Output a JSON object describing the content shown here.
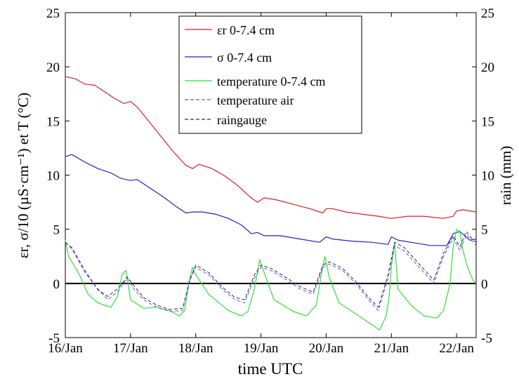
{
  "chart_data": {
    "type": "line",
    "xlabel": "time UTC",
    "ylabel_left": "εr, σ/10 (µS·cm⁻¹) et T (°C)",
    "ylabel_right": "rain (mm)",
    "x_ticks": [
      "16/Jan",
      "17/Jan",
      "18/Jan",
      "19/Jan",
      "20/Jan",
      "21/Jan",
      "22/Jan"
    ],
    "x_range_days": [
      16,
      22.3
    ],
    "ylim_left": [
      -5,
      25
    ],
    "ylim_right": [
      -5,
      25
    ],
    "y_ticks": [
      -5,
      0,
      5,
      10,
      15,
      20,
      25
    ],
    "zero_line": 0,
    "legend_position": "top-center",
    "series": [
      {
        "key": "er",
        "name": "εr 0-7.4 cm",
        "color": "#d62020",
        "style": "solid",
        "points": [
          [
            16.0,
            19.1
          ],
          [
            16.15,
            18.9
          ],
          [
            16.3,
            18.4
          ],
          [
            16.45,
            18.3
          ],
          [
            16.6,
            17.7
          ],
          [
            16.75,
            17.1
          ],
          [
            16.9,
            16.6
          ],
          [
            17.0,
            16.8
          ],
          [
            17.1,
            16.3
          ],
          [
            17.25,
            15.2
          ],
          [
            17.45,
            13.7
          ],
          [
            17.65,
            12.2
          ],
          [
            17.85,
            10.9
          ],
          [
            17.95,
            10.6
          ],
          [
            18.05,
            11.0
          ],
          [
            18.25,
            10.6
          ],
          [
            18.45,
            9.9
          ],
          [
            18.65,
            9.0
          ],
          [
            18.85,
            7.9
          ],
          [
            18.95,
            7.5
          ],
          [
            19.05,
            7.9
          ],
          [
            19.25,
            7.7
          ],
          [
            19.5,
            7.3
          ],
          [
            19.75,
            6.9
          ],
          [
            19.95,
            6.5
          ],
          [
            20.0,
            6.9
          ],
          [
            20.1,
            6.9
          ],
          [
            20.3,
            6.6
          ],
          [
            20.55,
            6.4
          ],
          [
            20.8,
            6.2
          ],
          [
            21.0,
            6.0
          ],
          [
            21.25,
            6.2
          ],
          [
            21.5,
            6.2
          ],
          [
            21.8,
            6.0
          ],
          [
            21.95,
            6.2
          ],
          [
            22.0,
            6.7
          ],
          [
            22.1,
            6.8
          ],
          [
            22.3,
            6.6
          ]
        ]
      },
      {
        "key": "sigma",
        "name": "σ 0-7.4 cm",
        "color": "#2020d0",
        "style": "solid",
        "points": [
          [
            16.0,
            11.7
          ],
          [
            16.1,
            11.9
          ],
          [
            16.3,
            11.2
          ],
          [
            16.5,
            10.6
          ],
          [
            16.7,
            10.2
          ],
          [
            16.85,
            9.7
          ],
          [
            17.0,
            9.5
          ],
          [
            17.1,
            9.6
          ],
          [
            17.3,
            8.8
          ],
          [
            17.5,
            8.0
          ],
          [
            17.7,
            7.1
          ],
          [
            17.85,
            6.5
          ],
          [
            17.95,
            6.6
          ],
          [
            18.1,
            6.6
          ],
          [
            18.3,
            6.4
          ],
          [
            18.5,
            6.0
          ],
          [
            18.7,
            5.4
          ],
          [
            18.85,
            4.6
          ],
          [
            18.95,
            4.7
          ],
          [
            19.05,
            4.4
          ],
          [
            19.3,
            4.4
          ],
          [
            19.6,
            4.1
          ],
          [
            19.9,
            3.8
          ],
          [
            20.0,
            4.3
          ],
          [
            20.1,
            4.1
          ],
          [
            20.4,
            3.9
          ],
          [
            20.7,
            3.8
          ],
          [
            20.95,
            3.6
          ],
          [
            21.0,
            4.3
          ],
          [
            21.1,
            4.0
          ],
          [
            21.3,
            3.8
          ],
          [
            21.6,
            3.5
          ],
          [
            21.85,
            3.5
          ],
          [
            21.95,
            4.6
          ],
          [
            22.05,
            4.8
          ],
          [
            22.2,
            4.0
          ],
          [
            22.3,
            4.1
          ]
        ]
      },
      {
        "key": "temp_soil",
        "name": "temperature 0-7.4 cm",
        "color": "#33dd33",
        "style": "solid",
        "points": [
          [
            16.0,
            4.0
          ],
          [
            16.05,
            2.5
          ],
          [
            16.2,
            1.0
          ],
          [
            16.35,
            -1.0
          ],
          [
            16.5,
            -1.8
          ],
          [
            16.7,
            -2.2
          ],
          [
            16.8,
            -1.2
          ],
          [
            16.87,
            0.8
          ],
          [
            16.93,
            1.2
          ],
          [
            17.0,
            -1.5
          ],
          [
            17.2,
            -2.3
          ],
          [
            17.4,
            -2.2
          ],
          [
            17.6,
            -2.5
          ],
          [
            17.75,
            -3.0
          ],
          [
            17.83,
            -2.5
          ],
          [
            17.9,
            0.2
          ],
          [
            17.95,
            1.5
          ],
          [
            18.0,
            0.8
          ],
          [
            18.2,
            -1.0
          ],
          [
            18.5,
            -2.5
          ],
          [
            18.7,
            -3.0
          ],
          [
            18.8,
            -2.6
          ],
          [
            18.9,
            -0.5
          ],
          [
            18.98,
            2.2
          ],
          [
            19.05,
            1.0
          ],
          [
            19.2,
            -1.5
          ],
          [
            19.5,
            -2.6
          ],
          [
            19.7,
            -3.0
          ],
          [
            19.85,
            -2.0
          ],
          [
            19.93,
            1.0
          ],
          [
            19.98,
            2.5
          ],
          [
            20.05,
            0.5
          ],
          [
            20.2,
            -1.8
          ],
          [
            20.5,
            -3.0
          ],
          [
            20.7,
            -3.8
          ],
          [
            20.82,
            -4.3
          ],
          [
            20.92,
            -3.0
          ],
          [
            20.97,
            -1.0
          ],
          [
            21.0,
            1.5
          ],
          [
            21.05,
            3.8
          ],
          [
            21.1,
            -0.5
          ],
          [
            21.3,
            -2.0
          ],
          [
            21.5,
            -3.0
          ],
          [
            21.7,
            -3.2
          ],
          [
            21.8,
            -2.5
          ],
          [
            21.9,
            0.0
          ],
          [
            21.95,
            3.5
          ],
          [
            22.0,
            5.0
          ],
          [
            22.05,
            4.8
          ],
          [
            22.1,
            3.0
          ],
          [
            22.17,
            1.5
          ],
          [
            22.25,
            0.3
          ],
          [
            22.3,
            0.0
          ]
        ]
      },
      {
        "key": "temp_air",
        "name": "temperature air",
        "color": "#6a5acd",
        "style": "dashed",
        "points": [
          [
            16.0,
            3.8
          ],
          [
            16.1,
            3.2
          ],
          [
            16.3,
            1.0
          ],
          [
            16.5,
            -0.5
          ],
          [
            16.65,
            -1.5
          ],
          [
            16.8,
            -0.8
          ],
          [
            16.95,
            0.5
          ],
          [
            17.05,
            -0.5
          ],
          [
            17.2,
            -1.5
          ],
          [
            17.4,
            -2.2
          ],
          [
            17.6,
            -2.6
          ],
          [
            17.8,
            -2.5
          ],
          [
            17.9,
            0.2
          ],
          [
            18.0,
            1.5
          ],
          [
            18.2,
            0.8
          ],
          [
            18.4,
            -0.5
          ],
          [
            18.6,
            -1.5
          ],
          [
            18.75,
            -1.8
          ],
          [
            18.9,
            0.5
          ],
          [
            19.0,
            1.5
          ],
          [
            19.15,
            1.2
          ],
          [
            19.4,
            0.3
          ],
          [
            19.6,
            -0.5
          ],
          [
            19.8,
            -1.0
          ],
          [
            19.95,
            1.5
          ],
          [
            20.05,
            1.8
          ],
          [
            20.25,
            1.2
          ],
          [
            20.45,
            0.0
          ],
          [
            20.65,
            -1.5
          ],
          [
            20.8,
            -2.5
          ],
          [
            20.95,
            0.5
          ],
          [
            21.05,
            3.5
          ],
          [
            21.2,
            3.0
          ],
          [
            21.35,
            2.0
          ],
          [
            21.5,
            1.0
          ],
          [
            21.65,
            0.0
          ],
          [
            21.8,
            2.5
          ],
          [
            21.95,
            4.2
          ],
          [
            22.05,
            3.0
          ],
          [
            22.15,
            4.5
          ],
          [
            22.25,
            3.8
          ],
          [
            22.3,
            3.5
          ]
        ]
      },
      {
        "key": "rain",
        "name": "raingauge",
        "color": "#2a2a6a",
        "style": "dashed",
        "points": [
          [
            16.0,
            3.8
          ],
          [
            16.1,
            3.3
          ],
          [
            16.3,
            1.2
          ],
          [
            16.5,
            -0.6
          ],
          [
            16.65,
            -1.2
          ],
          [
            16.8,
            -0.5
          ],
          [
            16.95,
            0.6
          ],
          [
            17.05,
            -0.2
          ],
          [
            17.2,
            -1.3
          ],
          [
            17.4,
            -2.0
          ],
          [
            17.6,
            -2.4
          ],
          [
            17.8,
            -2.3
          ],
          [
            17.92,
            0.5
          ],
          [
            18.0,
            1.7
          ],
          [
            18.2,
            1.0
          ],
          [
            18.4,
            -0.3
          ],
          [
            18.6,
            -1.3
          ],
          [
            18.75,
            -1.5
          ],
          [
            18.9,
            0.8
          ],
          [
            19.0,
            1.7
          ],
          [
            19.15,
            1.4
          ],
          [
            19.4,
            0.5
          ],
          [
            19.6,
            -0.3
          ],
          [
            19.8,
            -0.8
          ],
          [
            19.95,
            1.7
          ],
          [
            20.05,
            2.0
          ],
          [
            20.25,
            1.4
          ],
          [
            20.45,
            0.2
          ],
          [
            20.65,
            -1.3
          ],
          [
            20.8,
            -2.2
          ],
          [
            20.95,
            0.8
          ],
          [
            21.05,
            3.8
          ],
          [
            21.2,
            3.3
          ],
          [
            21.35,
            2.3
          ],
          [
            21.5,
            1.3
          ],
          [
            21.65,
            0.3
          ],
          [
            21.8,
            2.8
          ],
          [
            21.95,
            4.4
          ],
          [
            22.05,
            3.4
          ],
          [
            22.15,
            4.8
          ],
          [
            22.25,
            4.0
          ],
          [
            22.3,
            3.8
          ]
        ]
      }
    ]
  }
}
